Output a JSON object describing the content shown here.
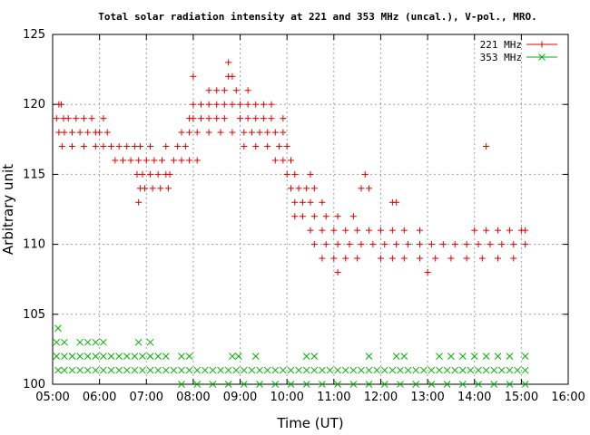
{
  "chart_data": {
    "type": "scatter",
    "title": "Total solar radiation intensity at 221 and 353 MHz (uncal.), V-pol., MRO.",
    "xlabel": "Time (UT)",
    "ylabel": "Arbitrary unit",
    "xlim": [
      "05:00",
      "16:00"
    ],
    "ylim": [
      100,
      125
    ],
    "x_ticks": [
      "05:00",
      "06:00",
      "07:00",
      "08:00",
      "09:00",
      "10:00",
      "11:00",
      "12:00",
      "13:00",
      "14:00",
      "15:00",
      "16:00"
    ],
    "y_ticks": [
      "100",
      "105",
      "110",
      "115",
      "120",
      "125"
    ],
    "grid": true,
    "legend": "top-right",
    "series": [
      {
        "name": "221 MHz",
        "color": "#e00000",
        "marker": "plus",
        "points": [
          [
            "05:08",
            120
          ],
          [
            "05:11",
            120
          ],
          [
            "05:05",
            119
          ],
          [
            "05:14",
            119
          ],
          [
            "05:20",
            119
          ],
          [
            "05:30",
            119
          ],
          [
            "05:40",
            119
          ],
          [
            "05:50",
            119
          ],
          [
            "06:05",
            119
          ],
          [
            "05:08",
            118
          ],
          [
            "05:15",
            118
          ],
          [
            "05:25",
            118
          ],
          [
            "05:35",
            118
          ],
          [
            "05:45",
            118
          ],
          [
            "05:55",
            118
          ],
          [
            "06:00",
            118
          ],
          [
            "06:10",
            118
          ],
          [
            "05:12",
            117
          ],
          [
            "05:25",
            117
          ],
          [
            "05:40",
            117
          ],
          [
            "05:55",
            117
          ],
          [
            "06:05",
            117
          ],
          [
            "06:15",
            117
          ],
          [
            "06:25",
            117
          ],
          [
            "06:35",
            117
          ],
          [
            "06:45",
            117
          ],
          [
            "06:20",
            116
          ],
          [
            "06:30",
            116
          ],
          [
            "06:40",
            116
          ],
          [
            "06:50",
            116
          ],
          [
            "07:00",
            116
          ],
          [
            "07:10",
            116
          ],
          [
            "07:20",
            116
          ],
          [
            "06:48",
            115
          ],
          [
            "06:55",
            115
          ],
          [
            "07:05",
            115
          ],
          [
            "07:15",
            115
          ],
          [
            "07:25",
            115
          ],
          [
            "07:30",
            115
          ],
          [
            "06:52",
            114
          ],
          [
            "06:58",
            114
          ],
          [
            "07:08",
            114
          ],
          [
            "07:18",
            114
          ],
          [
            "07:28",
            114
          ],
          [
            "06:50",
            113
          ],
          [
            "06:52",
            117
          ],
          [
            "07:05",
            117
          ],
          [
            "07:25",
            117
          ],
          [
            "07:40",
            117
          ],
          [
            "07:50",
            117
          ],
          [
            "07:35",
            116
          ],
          [
            "07:45",
            116
          ],
          [
            "07:55",
            116
          ],
          [
            "08:05",
            116
          ],
          [
            "07:45",
            118
          ],
          [
            "07:55",
            118
          ],
          [
            "08:05",
            118
          ],
          [
            "08:20",
            118
          ],
          [
            "08:35",
            118
          ],
          [
            "08:50",
            118
          ],
          [
            "07:55",
            119
          ],
          [
            "08:00",
            119
          ],
          [
            "08:10",
            119
          ],
          [
            "08:20",
            119
          ],
          [
            "08:30",
            119
          ],
          [
            "08:40",
            119
          ],
          [
            "08:00",
            120
          ],
          [
            "08:10",
            120
          ],
          [
            "08:20",
            120
          ],
          [
            "08:30",
            120
          ],
          [
            "08:40",
            120
          ],
          [
            "08:50",
            120
          ],
          [
            "08:20",
            121
          ],
          [
            "08:30",
            121
          ],
          [
            "08:40",
            121
          ],
          [
            "08:55",
            121
          ],
          [
            "09:10",
            121
          ],
          [
            "08:00",
            122
          ],
          [
            "08:45",
            122
          ],
          [
            "08:50",
            122
          ],
          [
            "08:45",
            123
          ],
          [
            "09:00",
            120
          ],
          [
            "09:10",
            120
          ],
          [
            "09:20",
            120
          ],
          [
            "09:30",
            120
          ],
          [
            "09:40",
            120
          ],
          [
            "09:00",
            119
          ],
          [
            "09:10",
            119
          ],
          [
            "09:20",
            119
          ],
          [
            "09:30",
            119
          ],
          [
            "09:40",
            119
          ],
          [
            "09:55",
            119
          ],
          [
            "09:05",
            118
          ],
          [
            "09:15",
            118
          ],
          [
            "09:25",
            118
          ],
          [
            "09:35",
            118
          ],
          [
            "09:45",
            118
          ],
          [
            "09:55",
            118
          ],
          [
            "09:05",
            117
          ],
          [
            "09:20",
            117
          ],
          [
            "09:35",
            117
          ],
          [
            "09:50",
            117
          ],
          [
            "10:00",
            117
          ],
          [
            "09:45",
            116
          ],
          [
            "09:55",
            116
          ],
          [
            "10:05",
            116
          ],
          [
            "10:00",
            115
          ],
          [
            "10:10",
            115
          ],
          [
            "10:30",
            115
          ],
          [
            "10:05",
            114
          ],
          [
            "10:15",
            114
          ],
          [
            "10:25",
            114
          ],
          [
            "10:35",
            114
          ],
          [
            "10:10",
            113
          ],
          [
            "10:20",
            113
          ],
          [
            "10:30",
            113
          ],
          [
            "10:45",
            113
          ],
          [
            "10:10",
            112
          ],
          [
            "10:20",
            112
          ],
          [
            "10:35",
            112
          ],
          [
            "10:50",
            112
          ],
          [
            "11:05",
            112
          ],
          [
            "11:25",
            112
          ],
          [
            "10:30",
            111
          ],
          [
            "10:45",
            111
          ],
          [
            "11:00",
            111
          ],
          [
            "11:15",
            111
          ],
          [
            "11:30",
            111
          ],
          [
            "11:45",
            111
          ],
          [
            "12:00",
            111
          ],
          [
            "12:15",
            111
          ],
          [
            "12:30",
            111
          ],
          [
            "12:50",
            111
          ],
          [
            "10:35",
            110
          ],
          [
            "10:50",
            110
          ],
          [
            "11:05",
            110
          ],
          [
            "11:20",
            110
          ],
          [
            "11:35",
            110
          ],
          [
            "11:50",
            110
          ],
          [
            "12:05",
            110
          ],
          [
            "12:20",
            110
          ],
          [
            "12:35",
            110
          ],
          [
            "12:50",
            110
          ],
          [
            "13:05",
            110
          ],
          [
            "13:20",
            110
          ],
          [
            "13:35",
            110
          ],
          [
            "13:50",
            110
          ],
          [
            "14:05",
            110
          ],
          [
            "14:20",
            110
          ],
          [
            "14:35",
            110
          ],
          [
            "14:50",
            110
          ],
          [
            "15:05",
            110
          ],
          [
            "10:45",
            109
          ],
          [
            "11:00",
            109
          ],
          [
            "11:15",
            109
          ],
          [
            "11:30",
            109
          ],
          [
            "12:00",
            109
          ],
          [
            "12:15",
            109
          ],
          [
            "12:30",
            109
          ],
          [
            "12:50",
            109
          ],
          [
            "13:10",
            109
          ],
          [
            "13:30",
            109
          ],
          [
            "13:50",
            109
          ],
          [
            "14:10",
            109
          ],
          [
            "14:30",
            109
          ],
          [
            "14:50",
            109
          ],
          [
            "11:05",
            108
          ],
          [
            "13:00",
            108
          ],
          [
            "11:35",
            114
          ],
          [
            "11:45",
            114
          ],
          [
            "11:40",
            115
          ],
          [
            "12:15",
            113
          ],
          [
            "12:20",
            113
          ],
          [
            "14:15",
            117
          ],
          [
            "14:00",
            111
          ],
          [
            "14:15",
            111
          ],
          [
            "14:30",
            111
          ],
          [
            "14:45",
            111
          ],
          [
            "15:00",
            111
          ],
          [
            "15:05",
            111
          ]
        ]
      },
      {
        "name": "353 MHz",
        "color": "#00b000",
        "marker": "cross",
        "points": [
          [
            "05:07",
            104
          ],
          [
            "05:05",
            103
          ],
          [
            "05:15",
            103
          ],
          [
            "05:35",
            103
          ],
          [
            "05:45",
            103
          ],
          [
            "05:55",
            103
          ],
          [
            "06:05",
            103
          ],
          [
            "06:50",
            103
          ],
          [
            "07:05",
            103
          ],
          [
            "05:05",
            102
          ],
          [
            "05:15",
            102
          ],
          [
            "05:25",
            102
          ],
          [
            "05:35",
            102
          ],
          [
            "05:45",
            102
          ],
          [
            "05:55",
            102
          ],
          [
            "06:05",
            102
          ],
          [
            "06:15",
            102
          ],
          [
            "06:25",
            102
          ],
          [
            "06:35",
            102
          ],
          [
            "06:45",
            102
          ],
          [
            "06:55",
            102
          ],
          [
            "07:05",
            102
          ],
          [
            "07:15",
            102
          ],
          [
            "07:25",
            102
          ],
          [
            "07:45",
            102
          ],
          [
            "07:55",
            102
          ],
          [
            "08:50",
            102
          ],
          [
            "08:58",
            102
          ],
          [
            "09:20",
            102
          ],
          [
            "10:25",
            102
          ],
          [
            "10:35",
            102
          ],
          [
            "11:45",
            102
          ],
          [
            "12:20",
            102
          ],
          [
            "12:30",
            102
          ],
          [
            "13:15",
            102
          ],
          [
            "13:30",
            102
          ],
          [
            "13:45",
            102
          ],
          [
            "14:00",
            102
          ],
          [
            "14:15",
            102
          ],
          [
            "14:30",
            102
          ],
          [
            "14:45",
            102
          ],
          [
            "15:05",
            102
          ],
          [
            "05:07",
            101
          ],
          [
            "05:15",
            101
          ],
          [
            "05:25",
            101
          ],
          [
            "05:35",
            101
          ],
          [
            "05:45",
            101
          ],
          [
            "05:55",
            101
          ],
          [
            "06:05",
            101
          ],
          [
            "06:15",
            101
          ],
          [
            "06:25",
            101
          ],
          [
            "06:35",
            101
          ],
          [
            "06:45",
            101
          ],
          [
            "06:55",
            101
          ],
          [
            "07:05",
            101
          ],
          [
            "07:15",
            101
          ],
          [
            "07:25",
            101
          ],
          [
            "07:35",
            101
          ],
          [
            "07:45",
            101
          ],
          [
            "07:55",
            101
          ],
          [
            "08:05",
            101
          ],
          [
            "08:15",
            101
          ],
          [
            "08:25",
            101
          ],
          [
            "08:35",
            101
          ],
          [
            "08:45",
            101
          ],
          [
            "08:55",
            101
          ],
          [
            "09:05",
            101
          ],
          [
            "09:15",
            101
          ],
          [
            "09:25",
            101
          ],
          [
            "09:35",
            101
          ],
          [
            "09:45",
            101
          ],
          [
            "09:55",
            101
          ],
          [
            "10:05",
            101
          ],
          [
            "10:15",
            101
          ],
          [
            "10:25",
            101
          ],
          [
            "10:35",
            101
          ],
          [
            "10:45",
            101
          ],
          [
            "10:55",
            101
          ],
          [
            "11:05",
            101
          ],
          [
            "11:15",
            101
          ],
          [
            "11:25",
            101
          ],
          [
            "11:35",
            101
          ],
          [
            "11:45",
            101
          ],
          [
            "11:55",
            101
          ],
          [
            "12:05",
            101
          ],
          [
            "12:15",
            101
          ],
          [
            "12:25",
            101
          ],
          [
            "12:35",
            101
          ],
          [
            "12:45",
            101
          ],
          [
            "12:55",
            101
          ],
          [
            "13:05",
            101
          ],
          [
            "13:15",
            101
          ],
          [
            "13:25",
            101
          ],
          [
            "13:35",
            101
          ],
          [
            "13:45",
            101
          ],
          [
            "13:55",
            101
          ],
          [
            "14:05",
            101
          ],
          [
            "14:15",
            101
          ],
          [
            "14:25",
            101
          ],
          [
            "14:35",
            101
          ],
          [
            "14:45",
            101
          ],
          [
            "14:55",
            101
          ],
          [
            "15:05",
            101
          ],
          [
            "07:45",
            100
          ],
          [
            "08:05",
            100
          ],
          [
            "08:25",
            100
          ],
          [
            "08:45",
            100
          ],
          [
            "09:05",
            100
          ],
          [
            "09:25",
            100
          ],
          [
            "09:45",
            100
          ],
          [
            "10:05",
            100
          ],
          [
            "10:25",
            100
          ],
          [
            "10:45",
            100
          ],
          [
            "11:05",
            100
          ],
          [
            "11:25",
            100
          ],
          [
            "11:45",
            100
          ],
          [
            "12:05",
            100
          ],
          [
            "12:25",
            100
          ],
          [
            "12:45",
            100
          ],
          [
            "13:05",
            100
          ],
          [
            "13:25",
            100
          ],
          [
            "13:45",
            100
          ],
          [
            "14:05",
            100
          ],
          [
            "14:25",
            100
          ],
          [
            "14:45",
            100
          ],
          [
            "15:05",
            100
          ]
        ]
      }
    ]
  }
}
